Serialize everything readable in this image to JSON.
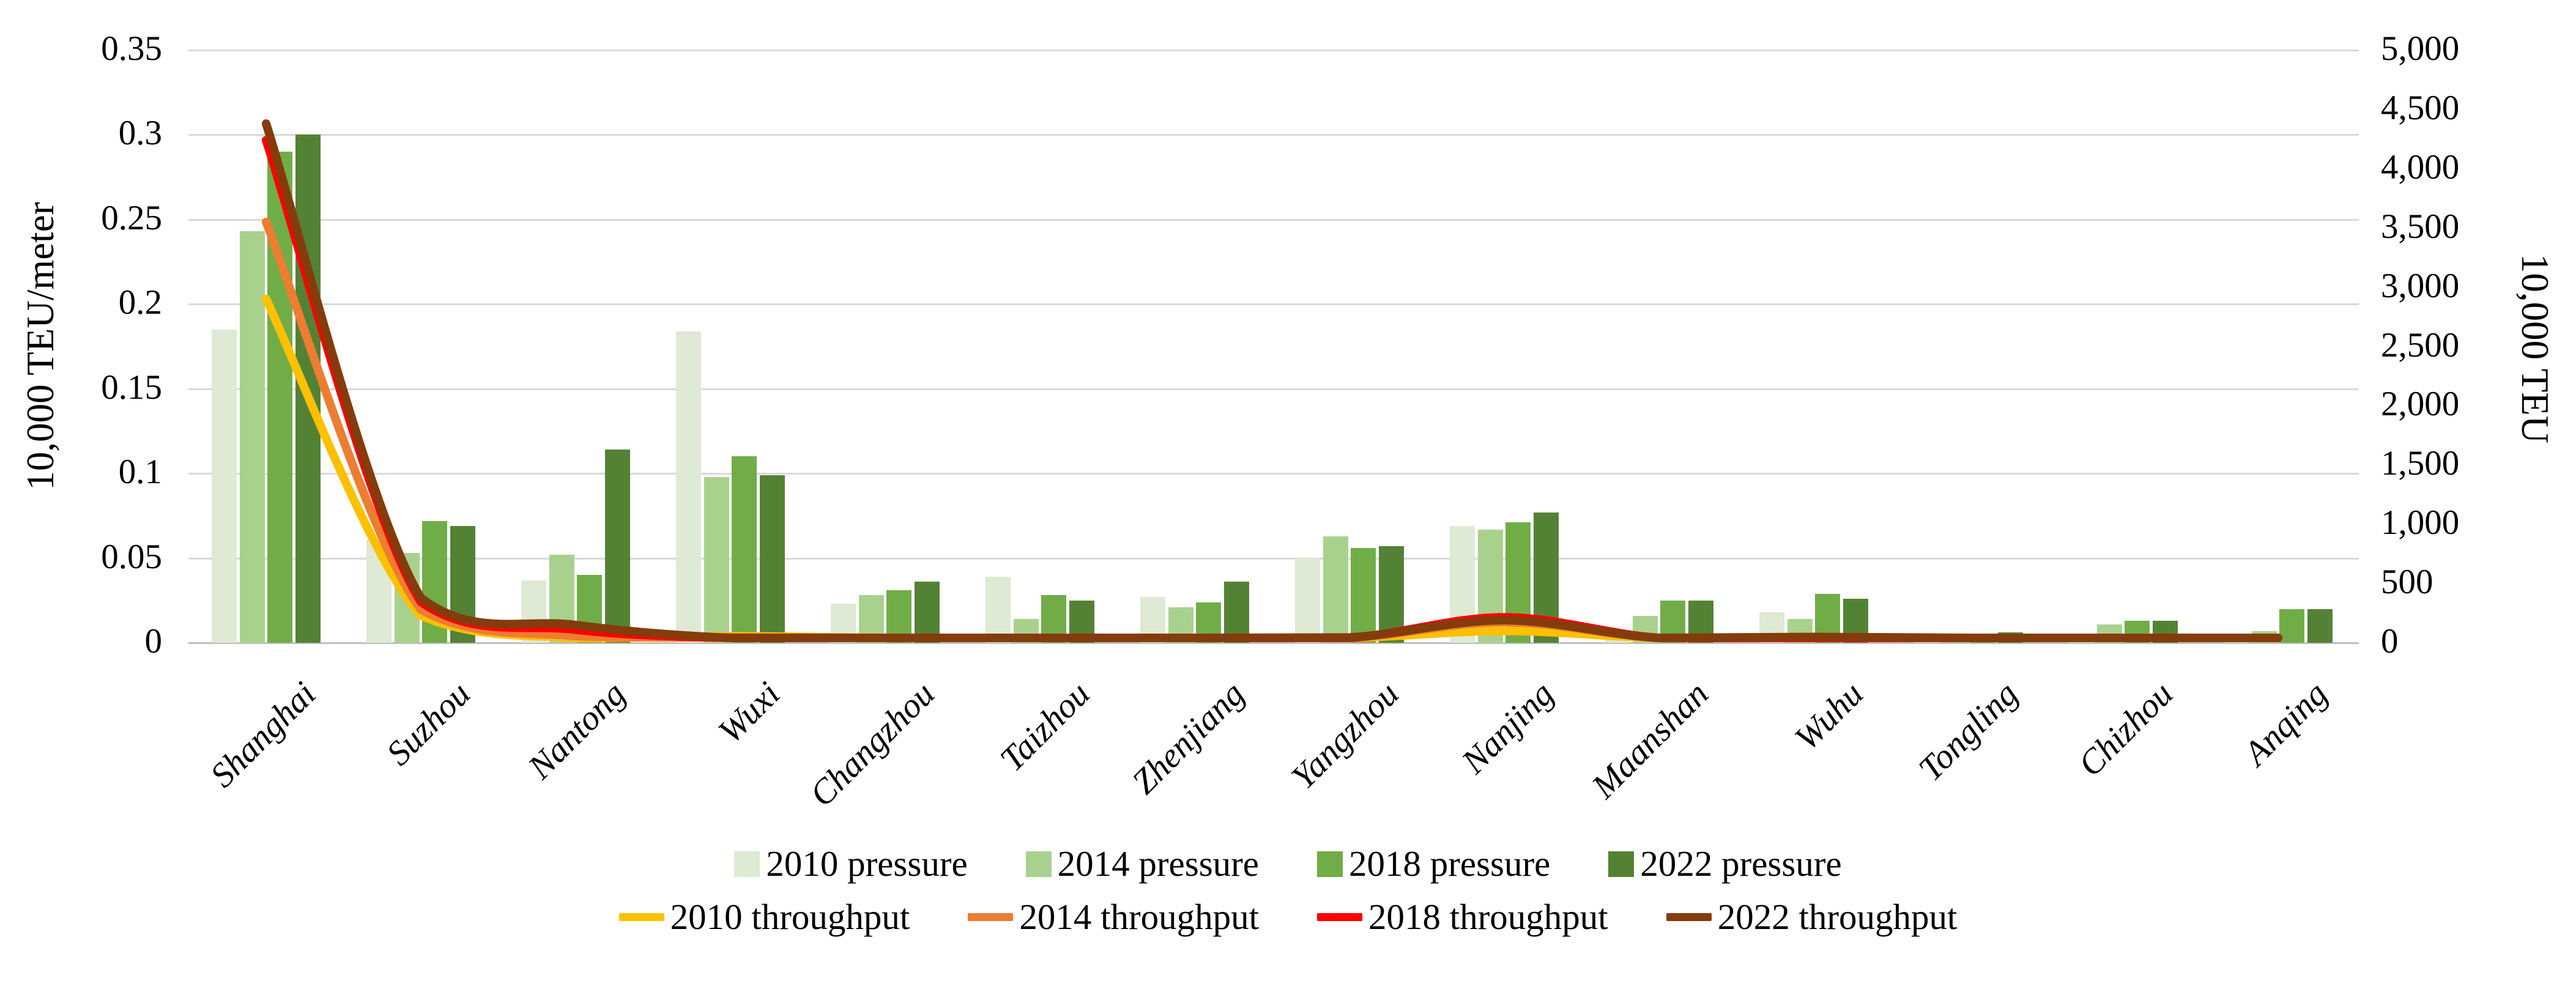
{
  "chart_data": {
    "type": "combo",
    "title": "",
    "categories": [
      "Shanghai",
      "Suzhou",
      "Nantong",
      "Wuxi",
      "Changzhou",
      "Taizhou",
      "Zhenjiang",
      "Yangzhou",
      "Nanjing",
      "Maanshan",
      "Wuhu",
      "Tongling",
      "Chizhou",
      "Anqing"
    ],
    "bar_series": [
      {
        "name": "2010 pressure",
        "color": "#DEEAD3",
        "axis": "left",
        "values": [
          0.185,
          0.061,
          0.037,
          0.184,
          0.023,
          0.039,
          0.027,
          0.05,
          0.069,
          0.002,
          0.018,
          0.001,
          0.004,
          0.002
        ]
      },
      {
        "name": "2014 pressure",
        "color": "#A9D18E",
        "axis": "left",
        "values": [
          0.243,
          0.053,
          0.052,
          0.098,
          0.028,
          0.014,
          0.021,
          0.063,
          0.067,
          0.016,
          0.014,
          0.004,
          0.011,
          0.007
        ]
      },
      {
        "name": "2018 pressure",
        "color": "#70AD47",
        "axis": "left",
        "values": [
          0.29,
          0.072,
          0.04,
          0.11,
          0.031,
          0.028,
          0.024,
          0.056,
          0.071,
          0.025,
          0.029,
          0.003,
          0.013,
          0.02
        ]
      },
      {
        "name": "2022 pressure",
        "color": "#548235",
        "axis": "left",
        "values": [
          0.3,
          0.069,
          0.114,
          0.099,
          0.036,
          0.025,
          0.036,
          0.057,
          0.077,
          0.025,
          0.026,
          0.006,
          0.013,
          0.02
        ]
      }
    ],
    "line_series": [
      {
        "name": "2010 throughput",
        "color": "#FFC000",
        "axis": "right",
        "values": [
          2900,
          230,
          30,
          55,
          15,
          8,
          10,
          12,
          100,
          35,
          8,
          5,
          5,
          5
        ]
      },
      {
        "name": "2014 throughput",
        "color": "#ED7D31",
        "axis": "right",
        "values": [
          3550,
          280,
          57,
          45,
          12,
          8,
          10,
          20,
          175,
          25,
          14,
          6,
          6,
          8
        ]
      },
      {
        "name": "2018 throughput",
        "color": "#FE0000",
        "axis": "right",
        "values": [
          4240,
          345,
          111,
          35,
          25,
          15,
          15,
          28,
          215,
          20,
          32,
          8,
          10,
          10
        ]
      },
      {
        "name": "2022 throughput",
        "color": "#843C0C",
        "axis": "right",
        "values": [
          4380,
          380,
          150,
          25,
          30,
          20,
          20,
          45,
          190,
          15,
          49,
          13,
          15,
          20
        ]
      }
    ],
    "axes": {
      "left": {
        "label": "10,000 TEU/meter",
        "min": 0,
        "max": 0.35,
        "step": 0.05,
        "tick_labels": [
          "0",
          "0.05",
          "0.1",
          "0.15",
          "0.2",
          "0.25",
          "0.3",
          "0.35"
        ]
      },
      "right": {
        "label": "10,000 TEU",
        "min": 0,
        "max": 5000,
        "step": 500,
        "tick_labels": [
          "0",
          "500",
          "1,000",
          "1,500",
          "2,000",
          "2,500",
          "3,000",
          "3,500",
          "4,000",
          "4,500",
          "5,000"
        ]
      }
    },
    "grid": "horizontal",
    "legend_position": "bottom",
    "legend_rows": [
      [
        "2010 pressure",
        "2014 pressure",
        "2018 pressure",
        "2022 pressure"
      ],
      [
        "2010 throughput",
        "2014 throughput",
        "2018 throughput",
        "2022 throughput"
      ]
    ],
    "style_colors": {
      "gridline": "#d9d9d9",
      "axisline": "#bfbfbf",
      "text": "#000000",
      "background": "#ffffff"
    }
  }
}
